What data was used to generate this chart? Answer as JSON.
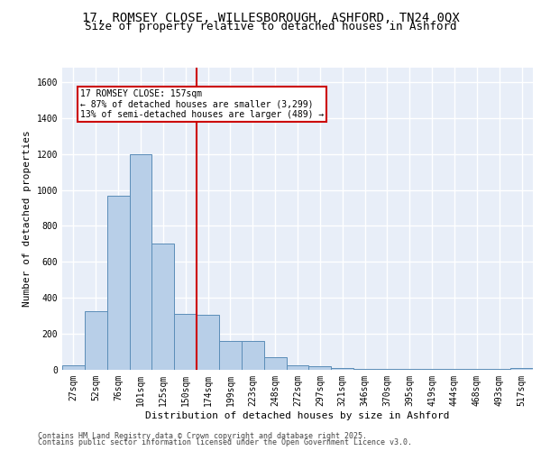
{
  "title_line1": "17, ROMSEY CLOSE, WILLESBOROUGH, ASHFORD, TN24 0QX",
  "title_line2": "Size of property relative to detached houses in Ashford",
  "xlabel": "Distribution of detached houses by size in Ashford",
  "ylabel": "Number of detached properties",
  "categories": [
    "27sqm",
    "52sqm",
    "76sqm",
    "101sqm",
    "125sqm",
    "150sqm",
    "174sqm",
    "199sqm",
    "223sqm",
    "248sqm",
    "272sqm",
    "297sqm",
    "321sqm",
    "346sqm",
    "370sqm",
    "395sqm",
    "419sqm",
    "444sqm",
    "468sqm",
    "493sqm",
    "517sqm"
  ],
  "values": [
    25,
    325,
    970,
    1200,
    700,
    310,
    305,
    160,
    160,
    70,
    25,
    20,
    10,
    5,
    5,
    5,
    5,
    5,
    5,
    5,
    10
  ],
  "bar_color": "#b8cfe8",
  "bar_edge_color": "#5b8db8",
  "vline_x": 5.5,
  "vline_color": "#cc0000",
  "annotation_text": "17 ROMSEY CLOSE: 157sqm\n← 87% of detached houses are smaller (3,299)\n13% of semi-detached houses are larger (489) →",
  "annotation_box_color": "#cc0000",
  "ylim": [
    0,
    1680
  ],
  "yticks": [
    0,
    200,
    400,
    600,
    800,
    1000,
    1200,
    1400,
    1600
  ],
  "background_color": "#e8eef8",
  "grid_color": "#ffffff",
  "footer_line1": "Contains HM Land Registry data © Crown copyright and database right 2025.",
  "footer_line2": "Contains public sector information licensed under the Open Government Licence v3.0.",
  "title_fontsize": 10,
  "subtitle_fontsize": 9,
  "axis_label_fontsize": 8,
  "tick_fontsize": 7,
  "annotation_fontsize": 7,
  "footer_fontsize": 6
}
